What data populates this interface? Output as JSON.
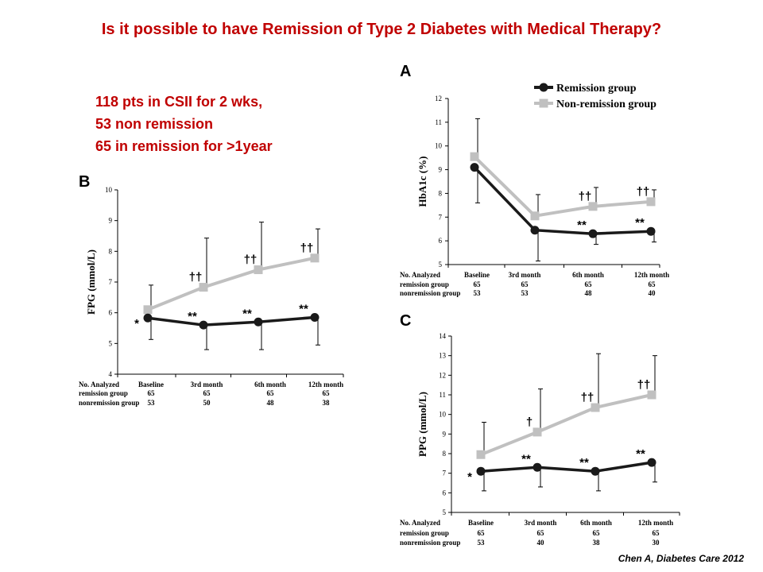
{
  "slide": {
    "title": "Is it possible to have Remission of Type 2 Diabetes with Medical Therapy?",
    "notes": [
      "118 pts in CSII for 2 wks,",
      "53 non remission",
      "65 in remission for >1year"
    ],
    "citation": "Chen A, Diabetes Care 2012"
  },
  "colors": {
    "title": "#c00000",
    "remission": "#1a1a1a",
    "nonremission": "#c0c0c0"
  },
  "chart_data": [
    {
      "panel": "A",
      "type": "line",
      "ylabel": "HbA1c (%)",
      "ylim": [
        5,
        12
      ],
      "yticks": [
        5,
        6,
        7,
        8,
        9,
        10,
        11,
        12
      ],
      "categories": [
        "Baseline",
        "3rd month",
        "6th month",
        "12th month"
      ],
      "series": [
        {
          "name": "Remission group",
          "key": "remission",
          "values": [
            9.1,
            6.45,
            6.3,
            6.4
          ],
          "err": [
            1.5,
            1.3,
            0.45,
            0.45
          ]
        },
        {
          "name": "Non-remission group",
          "key": "nonremission",
          "values": [
            9.55,
            7.05,
            7.45,
            7.65
          ],
          "err": [
            1.6,
            0.9,
            0.8,
            0.5
          ]
        }
      ],
      "annotations": [
        {
          "series": "remission",
          "index": 2,
          "text": "**"
        },
        {
          "series": "remission",
          "index": 3,
          "text": "**"
        },
        {
          "series": "nonremission",
          "index": 2,
          "text": "††"
        },
        {
          "series": "nonremission",
          "index": 3,
          "text": "††"
        }
      ],
      "legend": {
        "position": "top-right",
        "entries": [
          "Remission group",
          "Non-remission group"
        ]
      },
      "table": {
        "header": "No. Analyzed",
        "rows": [
          {
            "label": "remission group",
            "values": [
              "65",
              "65",
              "65",
              "65"
            ]
          },
          {
            "label": "nonremission group",
            "values": [
              "53",
              "53",
              "48",
              "40"
            ]
          }
        ]
      }
    },
    {
      "panel": "B",
      "type": "line",
      "ylabel": "FPG (mmol/L)",
      "ylim": [
        4,
        10
      ],
      "yticks": [
        4,
        5,
        6,
        7,
        8,
        9,
        10
      ],
      "categories": [
        "Baseline",
        "3rd month",
        "6th month",
        "12th month"
      ],
      "series": [
        {
          "name": "Remission group",
          "key": "remission",
          "values": [
            5.83,
            5.6,
            5.7,
            5.85
          ],
          "err": [
            0.7,
            0.8,
            0.9,
            0.9
          ]
        },
        {
          "name": "Non-remission group",
          "key": "nonremission",
          "values": [
            6.1,
            6.83,
            7.4,
            7.78
          ],
          "err": [
            0.8,
            1.6,
            1.55,
            0.95
          ]
        }
      ],
      "annotations": [
        {
          "series": "remission",
          "index": 0,
          "text": "*"
        },
        {
          "series": "remission",
          "index": 1,
          "text": "**"
        },
        {
          "series": "remission",
          "index": 2,
          "text": "**"
        },
        {
          "series": "remission",
          "index": 3,
          "text": "**"
        },
        {
          "series": "nonremission",
          "index": 1,
          "text": "††"
        },
        {
          "series": "nonremission",
          "index": 2,
          "text": "††"
        },
        {
          "series": "nonremission",
          "index": 3,
          "text": "††"
        }
      ],
      "table": {
        "header": "No. Analyzed",
        "rows": [
          {
            "label": "remission group",
            "values": [
              "65",
              "65",
              "65",
              "65"
            ]
          },
          {
            "label": "nonremission group",
            "values": [
              "53",
              "50",
              "48",
              "38"
            ]
          }
        ]
      }
    },
    {
      "panel": "C",
      "type": "line",
      "ylabel": "PPG (mmol/L)",
      "ylim": [
        5,
        14
      ],
      "yticks": [
        5,
        6,
        7,
        8,
        9,
        10,
        11,
        12,
        13,
        14
      ],
      "categories": [
        "Baseline",
        "3rd month",
        "6th month",
        "12th month"
      ],
      "series": [
        {
          "name": "Remission group",
          "key": "remission",
          "values": [
            7.1,
            7.3,
            7.1,
            7.55
          ],
          "err": [
            1.0,
            1.0,
            1.0,
            1.0
          ]
        },
        {
          "name": "Non-remission group",
          "key": "nonremission",
          "values": [
            7.95,
            9.1,
            10.35,
            11.0
          ],
          "err": [
            1.65,
            2.2,
            2.75,
            2.0
          ]
        }
      ],
      "annotations": [
        {
          "series": "remission",
          "index": 0,
          "text": "*"
        },
        {
          "series": "remission",
          "index": 1,
          "text": "**"
        },
        {
          "series": "remission",
          "index": 2,
          "text": "**"
        },
        {
          "series": "remission",
          "index": 3,
          "text": "**"
        },
        {
          "series": "nonremission",
          "index": 1,
          "text": "†"
        },
        {
          "series": "nonremission",
          "index": 2,
          "text": "††"
        },
        {
          "series": "nonremission",
          "index": 3,
          "text": "††"
        }
      ],
      "table": {
        "header": "No. Analyzed",
        "rows": [
          {
            "label": "remission group",
            "values": [
              "65",
              "65",
              "65",
              "65"
            ]
          },
          {
            "label": "nonremission group",
            "values": [
              "53",
              "40",
              "38",
              "30"
            ]
          }
        ]
      }
    }
  ]
}
